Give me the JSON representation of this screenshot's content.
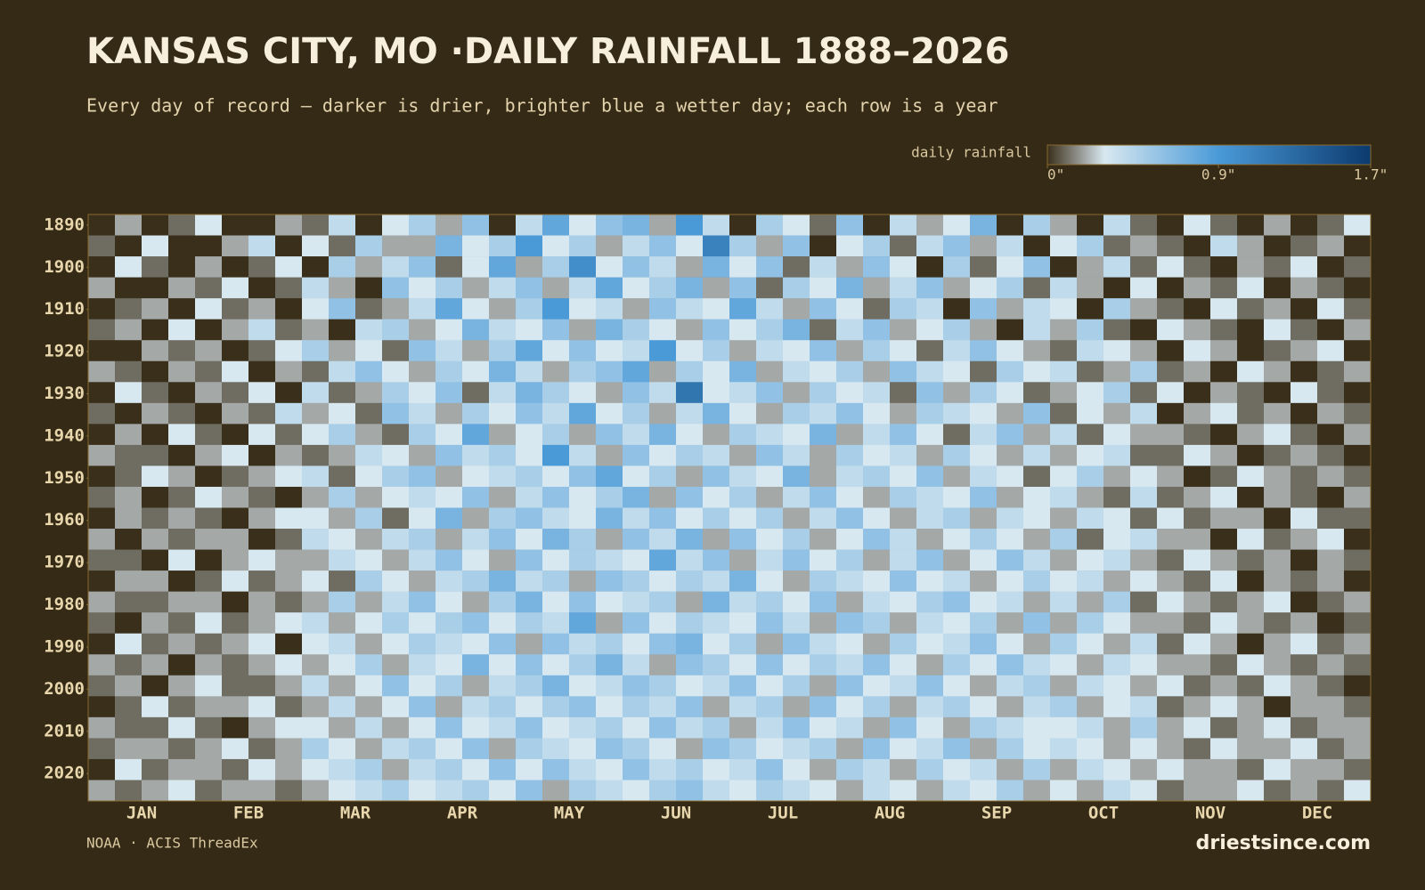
{
  "chart_data": {
    "type": "heatmap",
    "title": "KANSAS CITY, MO ·DAILY RAINFALL 1888–2026",
    "subtitle": "Every day of record — darker is drier, brighter blue a wetter day; each row is a year",
    "legend_title": "daily rainfall",
    "clim": [
      0,
      1.7
    ],
    "cticks": [
      {
        "value": 0,
        "label": "0\""
      },
      {
        "value": 0.9,
        "label": "0.9\""
      },
      {
        "value": 1.7,
        "label": "1.7\""
      }
    ],
    "colorscale": [
      [
        0,
        "#3a2f1a"
      ],
      [
        0.15,
        "#8a8a84"
      ],
      [
        0.3,
        "#d8e8f0"
      ],
      [
        0.9,
        "#4a9ad8"
      ],
      [
        1.7,
        "#0b3a6e"
      ]
    ],
    "categories": [
      "JAN",
      "FEB",
      "MAR",
      "APR",
      "MAY",
      "JUN",
      "JUL",
      "AUG",
      "SEP",
      "OCT",
      "NOV",
      "DEC"
    ],
    "ylim": [
      1887.5,
      2026.5
    ],
    "yticks": [
      1890,
      1900,
      1910,
      1920,
      1930,
      1940,
      1950,
      1960,
      1970,
      1980,
      1990,
      2000,
      2010,
      2020
    ],
    "z": [
      [
        0,
        0.2,
        0,
        0.1,
        0.3,
        0,
        0,
        0.2,
        0.1,
        0.4,
        0,
        0.3,
        0.5,
        0.2,
        0.6,
        0,
        0.4,
        0.8,
        0.3,
        0.6,
        0.7,
        0.2,
        0.9,
        0.4,
        0,
        0.5,
        0.3,
        0.1,
        0.6,
        0,
        0.4,
        0.2,
        0.3,
        0.7,
        0,
        0.5,
        0.2,
        0,
        0.4,
        0.1,
        0,
        0.3,
        0.1,
        0,
        0.2,
        0,
        0.1,
        0.3
      ],
      [
        0.1,
        0,
        0.3,
        0,
        0,
        0.2,
        0.4,
        0,
        0.3,
        0.1,
        0.5,
        0.2,
        0.2,
        0.7,
        0.3,
        0.5,
        0.9,
        0.3,
        0.5,
        0.2,
        0.4,
        0.6,
        0.3,
        1.1,
        0.5,
        0.2,
        0.6,
        0,
        0.3,
        0.5,
        0.1,
        0.4,
        0.6,
        0.2,
        0.4,
        0,
        0.3,
        0.5,
        0.1,
        0.2,
        0.1,
        0,
        0.4,
        0.2,
        0,
        0.1,
        0.2,
        0
      ],
      [
        0,
        0.3,
        0.1,
        0,
        0.2,
        0,
        0.1,
        0.3,
        0,
        0.5,
        0.2,
        0.4,
        0.6,
        0.1,
        0.3,
        0.8,
        0.2,
        0.5,
        1.0,
        0.3,
        0.6,
        0.4,
        0.2,
        0.7,
        0.3,
        0.6,
        0.1,
        0.4,
        0.2,
        0.6,
        0.3,
        0,
        0.5,
        0.1,
        0.3,
        0.6,
        0,
        0.2,
        0.4,
        0.1,
        0.3,
        0.1,
        0,
        0.2,
        0.1,
        0.3,
        0,
        0.1
      ],
      [
        0.2,
        0,
        0,
        0.2,
        0.1,
        0.3,
        0,
        0.1,
        0.4,
        0.2,
        0,
        0.6,
        0.3,
        0.5,
        0.2,
        0.4,
        0.6,
        0.2,
        0.4,
        0.8,
        0.3,
        0.5,
        0.7,
        0.2,
        0.6,
        0.1,
        0.5,
        0.3,
        0.7,
        0.2,
        0.4,
        0.6,
        0.2,
        0.3,
        0.5,
        0.1,
        0.4,
        0.2,
        0,
        0.3,
        0,
        0.2,
        0.1,
        0.3,
        0,
        0.2,
        0.1,
        0
      ],
      [
        0,
        0.1,
        0.2,
        0,
        0.3,
        0.1,
        0.2,
        0,
        0.3,
        0.6,
        0.1,
        0.2,
        0.4,
        0.8,
        0.3,
        0.2,
        0.5,
        0.9,
        0.3,
        0.4,
        0.2,
        0.6,
        0.4,
        0.3,
        0.8,
        0.4,
        0.2,
        0.6,
        0.3,
        0.1,
        0.5,
        0.4,
        0,
        0.6,
        0.2,
        0.4,
        0.3,
        0,
        0.5,
        0.2,
        0.1,
        0,
        0.3,
        0.1,
        0.2,
        0,
        0.3,
        0.1
      ],
      [
        0.1,
        0.2,
        0,
        0.3,
        0,
        0.2,
        0.4,
        0.1,
        0.2,
        0,
        0.4,
        0.5,
        0.2,
        0.3,
        0.7,
        0.4,
        0.3,
        0.6,
        0.2,
        0.7,
        0.5,
        0.3,
        0.2,
        0.6,
        0.3,
        0.5,
        0.7,
        0.1,
        0.4,
        0.6,
        0.2,
        0.3,
        0.5,
        0.2,
        0,
        0.4,
        0.2,
        0.5,
        0.1,
        0,
        0.3,
        0.2,
        0.1,
        0,
        0.3,
        0.1,
        0,
        0.2
      ],
      [
        0,
        0,
        0.2,
        0.1,
        0.2,
        0,
        0.1,
        0.3,
        0.5,
        0.2,
        0.3,
        0.1,
        0.6,
        0.4,
        0.2,
        0.5,
        0.8,
        0.3,
        0.6,
        0.3,
        0.4,
        0.9,
        0.3,
        0.5,
        0.2,
        0.4,
        0.3,
        0.6,
        0.2,
        0.5,
        0.3,
        0.1,
        0.4,
        0.6,
        0.3,
        0.2,
        0.1,
        0.4,
        0.3,
        0.2,
        0,
        0.3,
        0.2,
        0,
        0.1,
        0.2,
        0.3,
        0
      ],
      [
        0.2,
        0.1,
        0,
        0.2,
        0.1,
        0.3,
        0,
        0.2,
        0.1,
        0.4,
        0.6,
        0.3,
        0.2,
        0.5,
        0.3,
        0.7,
        0.4,
        0.2,
        0.5,
        0.6,
        0.8,
        0.2,
        0.5,
        0.3,
        0.7,
        0.2,
        0.4,
        0.3,
        0.5,
        0.2,
        0.6,
        0.4,
        0.3,
        0.1,
        0.5,
        0.3,
        0.4,
        0.1,
        0.2,
        0.5,
        0.1,
        0.2,
        0,
        0.3,
        0.2,
        0,
        0.1,
        0.2
      ],
      [
        0,
        0.3,
        0.1,
        0,
        0.2,
        0.1,
        0.3,
        0,
        0.4,
        0.1,
        0.2,
        0.5,
        0.3,
        0.6,
        0.1,
        0.4,
        0.7,
        0.5,
        0.3,
        0.2,
        0.6,
        0.4,
        1.2,
        0.3,
        0.4,
        0.6,
        0.2,
        0.5,
        0.3,
        0.4,
        0.1,
        0.6,
        0.2,
        0.5,
        0.3,
        0.1,
        0.2,
        0.3,
        0.5,
        0.1,
        0.3,
        0,
        0.2,
        0.1,
        0,
        0.3,
        0.1,
        0
      ],
      [
        0.1,
        0,
        0.2,
        0.1,
        0,
        0.2,
        0.1,
        0.4,
        0.2,
        0.3,
        0.1,
        0.6,
        0.4,
        0.2,
        0.5,
        0.3,
        0.6,
        0.4,
        0.8,
        0.3,
        0.5,
        0.2,
        0.4,
        0.7,
        0.3,
        0.2,
        0.5,
        0.4,
        0.6,
        0.3,
        0.2,
        0.5,
        0.4,
        0.3,
        0.2,
        0.6,
        0.1,
        0.3,
        0.2,
        0.4,
        0,
        0.2,
        0.3,
        0.1,
        0.2,
        0,
        0.2,
        0.1
      ],
      [
        0,
        0.2,
        0,
        0.3,
        0.1,
        0,
        0.3,
        0.1,
        0.3,
        0.5,
        0.2,
        0.1,
        0.5,
        0.3,
        0.8,
        0.2,
        0.3,
        0.5,
        0.2,
        0.6,
        0.4,
        0.7,
        0.3,
        0.2,
        0.5,
        0.4,
        0.3,
        0.7,
        0.2,
        0.4,
        0.6,
        0.3,
        0.1,
        0.4,
        0.6,
        0.2,
        0.4,
        0.1,
        0.3,
        0.2,
        0.2,
        0.1,
        0,
        0.2,
        0.3,
        0.1,
        0,
        0.2
      ],
      [
        0.2,
        0.1,
        0.1,
        0,
        0.2,
        0.3,
        0,
        0.2,
        0.1,
        0.2,
        0.4,
        0.3,
        0.2,
        0.6,
        0.4,
        0.5,
        0.3,
        0.9,
        0.4,
        0.2,
        0.6,
        0.3,
        0.5,
        0.4,
        0.2,
        0.6,
        0.4,
        0.2,
        0.5,
        0.3,
        0.4,
        0.2,
        0.5,
        0.3,
        0.2,
        0.4,
        0.2,
        0.3,
        0.4,
        0.1,
        0.1,
        0.3,
        0.2,
        0,
        0.1,
        0.2,
        0.1,
        0
      ],
      [
        0,
        0.1,
        0.3,
        0.2,
        0,
        0.1,
        0.2,
        0.3,
        0.4,
        0.1,
        0.3,
        0.5,
        0.6,
        0.2,
        0.3,
        0.4,
        0.5,
        0.3,
        0.6,
        0.8,
        0.3,
        0.5,
        0.2,
        0.6,
        0.4,
        0.3,
        0.7,
        0.2,
        0.4,
        0.5,
        0.3,
        0.6,
        0.2,
        0.4,
        0.3,
        0.1,
        0.3,
        0.5,
        0.2,
        0.3,
        0.2,
        0,
        0.1,
        0.3,
        0.2,
        0.1,
        0.2,
        0.1
      ],
      [
        0.1,
        0.2,
        0,
        0.1,
        0.3,
        0.2,
        0.1,
        0,
        0.2,
        0.5,
        0.2,
        0.3,
        0.4,
        0.3,
        0.6,
        0.2,
        0.4,
        0.6,
        0.3,
        0.5,
        0.7,
        0.2,
        0.6,
        0.3,
        0.5,
        0.2,
        0.4,
        0.6,
        0.3,
        0.2,
        0.5,
        0.4,
        0.3,
        0.6,
        0.2,
        0.3,
        0.4,
        0.2,
        0.1,
        0.4,
        0.1,
        0.2,
        0.3,
        0,
        0.2,
        0.1,
        0,
        0.2
      ],
      [
        0,
        0.2,
        0.1,
        0.2,
        0.1,
        0,
        0.2,
        0.3,
        0.3,
        0.2,
        0.5,
        0.1,
        0.3,
        0.7,
        0.2,
        0.5,
        0.6,
        0.4,
        0.3,
        0.7,
        0.4,
        0.6,
        0.3,
        0.5,
        0.3,
        0.5,
        0.2,
        0.4,
        0.6,
        0.3,
        0.2,
        0.4,
        0.5,
        0.2,
        0.4,
        0.3,
        0.2,
        0.4,
        0.3,
        0.1,
        0.3,
        0.1,
        0.2,
        0.2,
        0,
        0.3,
        0.1,
        0.1
      ],
      [
        0.2,
        0,
        0.2,
        0.1,
        0.2,
        0.2,
        0,
        0.1,
        0.4,
        0.3,
        0.2,
        0.4,
        0.5,
        0.2,
        0.4,
        0.6,
        0.3,
        0.7,
        0.5,
        0.2,
        0.6,
        0.4,
        0.7,
        0.2,
        0.6,
        0.3,
        0.5,
        0.2,
        0.3,
        0.6,
        0.4,
        0.2,
        0.3,
        0.5,
        0.3,
        0.2,
        0.5,
        0.1,
        0.3,
        0.4,
        0.2,
        0.2,
        0,
        0.3,
        0.1,
        0.2,
        0.3,
        0
      ],
      [
        0.1,
        0.1,
        0,
        0.3,
        0,
        0.2,
        0.3,
        0.2,
        0.2,
        0.4,
        0.3,
        0.2,
        0.4,
        0.6,
        0.3,
        0.2,
        0.6,
        0.3,
        0.5,
        0.4,
        0.3,
        0.8,
        0.4,
        0.6,
        0.2,
        0.4,
        0.6,
        0.3,
        0.5,
        0.2,
        0.4,
        0.6,
        0.2,
        0.3,
        0.6,
        0.4,
        0.2,
        0.3,
        0.4,
        0.2,
        0.1,
        0.3,
        0.2,
        0.1,
        0.2,
        0,
        0.2,
        0.1
      ],
      [
        0,
        0.2,
        0.2,
        0,
        0.1,
        0.3,
        0.1,
        0.2,
        0.3,
        0.1,
        0.5,
        0.3,
        0.2,
        0.4,
        0.5,
        0.7,
        0.4,
        0.5,
        0.2,
        0.6,
        0.5,
        0.3,
        0.5,
        0.4,
        0.7,
        0.3,
        0.2,
        0.5,
        0.4,
        0.3,
        0.6,
        0.3,
        0.4,
        0.2,
        0.3,
        0.5,
        0.3,
        0.4,
        0.2,
        0.3,
        0.2,
        0.1,
        0.3,
        0,
        0.2,
        0.1,
        0.2,
        0
      ],
      [
        0.2,
        0.1,
        0.1,
        0.2,
        0.2,
        0,
        0.2,
        0.1,
        0.2,
        0.5,
        0.2,
        0.4,
        0.6,
        0.3,
        0.2,
        0.5,
        0.7,
        0.3,
        0.6,
        0.3,
        0.4,
        0.5,
        0.2,
        0.7,
        0.4,
        0.5,
        0.3,
        0.6,
        0.2,
        0.4,
        0.3,
        0.5,
        0.6,
        0.3,
        0.4,
        0.2,
        0.4,
        0.2,
        0.5,
        0.1,
        0.3,
        0.2,
        0.1,
        0.2,
        0.3,
        0,
        0.1,
        0.2
      ],
      [
        0.1,
        0,
        0.2,
        0.1,
        0.3,
        0.1,
        0.2,
        0.3,
        0.4,
        0.2,
        0.3,
        0.5,
        0.3,
        0.5,
        0.6,
        0.3,
        0.5,
        0.4,
        0.8,
        0.2,
        0.6,
        0.3,
        0.5,
        0.4,
        0.3,
        0.6,
        0.4,
        0.2,
        0.6,
        0.5,
        0.2,
        0.4,
        0.3,
        0.5,
        0.2,
        0.6,
        0.2,
        0.5,
        0.3,
        0.2,
        0.2,
        0.1,
        0.3,
        0.2,
        0.1,
        0.2,
        0,
        0.1
      ],
      [
        0,
        0.3,
        0.1,
        0.2,
        0.1,
        0.2,
        0.3,
        0,
        0.3,
        0.4,
        0.2,
        0.3,
        0.5,
        0.4,
        0.3,
        0.6,
        0.2,
        0.6,
        0.4,
        0.5,
        0.3,
        0.6,
        0.7,
        0.3,
        0.5,
        0.2,
        0.6,
        0.4,
        0.3,
        0.2,
        0.5,
        0.3,
        0.4,
        0.6,
        0.3,
        0.2,
        0.5,
        0.3,
        0.2,
        0.4,
        0.1,
        0.3,
        0.2,
        0,
        0.2,
        0.3,
        0.1,
        0.2
      ],
      [
        0.2,
        0.1,
        0.2,
        0,
        0.2,
        0.1,
        0.2,
        0.3,
        0.2,
        0.3,
        0.5,
        0.2,
        0.4,
        0.3,
        0.7,
        0.3,
        0.6,
        0.3,
        0.5,
        0.7,
        0.4,
        0.2,
        0.6,
        0.5,
        0.3,
        0.6,
        0.3,
        0.5,
        0.4,
        0.6,
        0.3,
        0.2,
        0.5,
        0.3,
        0.6,
        0.4,
        0.3,
        0.2,
        0.4,
        0.3,
        0.2,
        0.2,
        0.1,
        0.3,
        0.2,
        0.1,
        0.2,
        0.1
      ],
      [
        0.1,
        0.2,
        0,
        0.2,
        0.3,
        0.1,
        0.1,
        0.2,
        0.4,
        0.2,
        0.3,
        0.6,
        0.3,
        0.5,
        0.2,
        0.4,
        0.5,
        0.7,
        0.3,
        0.4,
        0.6,
        0.5,
        0.3,
        0.4,
        0.6,
        0.3,
        0.5,
        0.2,
        0.6,
        0.3,
        0.4,
        0.6,
        0.3,
        0.2,
        0.4,
        0.5,
        0.2,
        0.4,
        0.3,
        0.2,
        0.3,
        0.1,
        0.2,
        0.1,
        0.3,
        0.2,
        0.1,
        0
      ],
      [
        0,
        0.1,
        0.3,
        0.1,
        0.2,
        0.2,
        0.3,
        0.1,
        0.2,
        0.4,
        0.2,
        0.3,
        0.6,
        0.2,
        0.4,
        0.5,
        0.3,
        0.5,
        0.6,
        0.3,
        0.5,
        0.4,
        0.6,
        0.2,
        0.4,
        0.5,
        0.2,
        0.6,
        0.3,
        0.5,
        0.2,
        0.4,
        0.5,
        0.3,
        0.2,
        0.4,
        0.5,
        0.2,
        0.3,
        0.4,
        0.1,
        0.2,
        0.3,
        0.2,
        0,
        0.2,
        0.2,
        0.1
      ],
      [
        0.2,
        0.1,
        0.1,
        0.3,
        0.1,
        0,
        0.2,
        0.3,
        0.3,
        0.2,
        0.4,
        0.2,
        0.3,
        0.6,
        0.3,
        0.4,
        0.6,
        0.3,
        0.4,
        0.5,
        0.3,
        0.6,
        0.4,
        0.5,
        0.2,
        0.4,
        0.6,
        0.3,
        0.4,
        0.2,
        0.6,
        0.3,
        0.2,
        0.5,
        0.4,
        0.3,
        0.3,
        0.4,
        0.2,
        0.5,
        0.2,
        0.3,
        0.1,
        0.2,
        0.3,
        0.1,
        0.2,
        0.2
      ],
      [
        0.1,
        0.2,
        0.2,
        0.1,
        0.2,
        0.3,
        0.1,
        0.2,
        0.5,
        0.3,
        0.2,
        0.4,
        0.5,
        0.3,
        0.6,
        0.2,
        0.5,
        0.4,
        0.3,
        0.6,
        0.5,
        0.3,
        0.2,
        0.6,
        0.5,
        0.3,
        0.4,
        0.5,
        0.2,
        0.6,
        0.3,
        0.4,
        0.6,
        0.2,
        0.5,
        0.3,
        0.4,
        0.3,
        0.2,
        0.3,
        0.2,
        0.1,
        0.3,
        0.2,
        0.2,
        0.3,
        0.1,
        0.2
      ],
      [
        0,
        0.3,
        0.1,
        0.2,
        0.2,
        0.1,
        0.3,
        0.2,
        0.3,
        0.4,
        0.5,
        0.2,
        0.4,
        0.5,
        0.3,
        0.6,
        0.3,
        0.6,
        0.4,
        0.3,
        0.6,
        0.4,
        0.5,
        0.3,
        0.4,
        0.6,
        0.3,
        0.2,
        0.5,
        0.4,
        0.2,
        0.5,
        0.3,
        0.4,
        0.2,
        0.5,
        0.2,
        0.4,
        0.3,
        0.2,
        0.3,
        0.2,
        0.2,
        0.1,
        0.3,
        0.2,
        0.2,
        0.1
      ],
      [
        0.2,
        0.1,
        0.2,
        0.3,
        0.1,
        0.2,
        0.2,
        0.1,
        0.2,
        0.3,
        0.4,
        0.5,
        0.3,
        0.4,
        0.5,
        0.3,
        0.6,
        0.2,
        0.5,
        0.4,
        0.3,
        0.5,
        0.6,
        0.4,
        0.3,
        0.5,
        0.4,
        0.3,
        0.2,
        0.4,
        0.3,
        0.2,
        0.4,
        0.3,
        0.5,
        0.2,
        0.3,
        0.2,
        0.4,
        0.3,
        0.1,
        0.2,
        0.2,
        0.3,
        0.1,
        0.2,
        0.1,
        0.3
      ]
    ],
    "source": "NOAA · ACIS ThreadEx",
    "brand": "driestsince.com"
  }
}
